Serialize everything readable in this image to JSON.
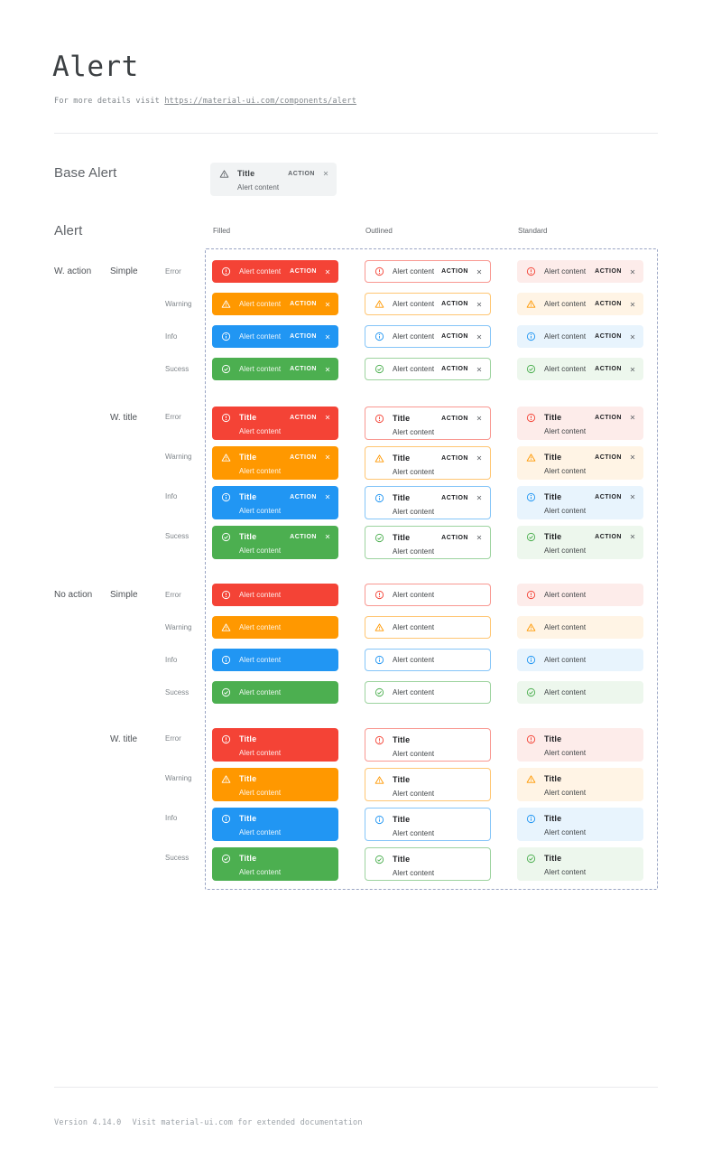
{
  "page": {
    "title": "Alert",
    "subtitle_prefix": "For more details visit ",
    "subtitle_link": "https://material-ui.com/components/alert"
  },
  "base_alert": {
    "section_label": "Base Alert",
    "title": "Title",
    "content": "Alert content",
    "action": "ACTION",
    "icon": "warning-icon"
  },
  "alert_section": {
    "label": "Alert",
    "variants": [
      "Filled",
      "Outlined",
      "Standard"
    ],
    "variant_keys": [
      "filled",
      "outlined",
      "standard"
    ],
    "groups": [
      {
        "label": "W. action",
        "with_action": true,
        "subgroups": [
          {
            "label": "Simple",
            "with_title": false
          },
          {
            "label": "W. title",
            "with_title": true
          }
        ]
      },
      {
        "label": "No action",
        "with_action": false,
        "subgroups": [
          {
            "label": "Simple",
            "with_title": false
          },
          {
            "label": "W. title",
            "with_title": true
          }
        ]
      }
    ],
    "severities": [
      {
        "label": "Error",
        "key": "error",
        "icon": "error-icon"
      },
      {
        "label": "Warning",
        "key": "warning",
        "icon": "warning-icon"
      },
      {
        "label": "Info",
        "key": "info",
        "icon": "info-icon"
      },
      {
        "label": "Sucess",
        "key": "success",
        "icon": "success-icon"
      }
    ],
    "alert": {
      "title": "Title",
      "content": "Alert content",
      "action": "ACTION"
    }
  },
  "footer": {
    "version": "Version 4.14.0",
    "note": "Visit material-ui.com for extended documentation"
  },
  "colors": {
    "error": {
      "main": "#f44336",
      "bg": "#fdecea",
      "border": "rgba(244,67,54,0.55)"
    },
    "warning": {
      "main": "#ff9800",
      "bg": "#fff4e5",
      "border": "rgba(255,152,0,0.55)"
    },
    "info": {
      "main": "#2196f3",
      "bg": "#e8f4fd",
      "border": "rgba(33,150,243,0.55)"
    },
    "success": {
      "main": "#4caf50",
      "bg": "#edf7ed",
      "border": "rgba(76,175,80,0.55)"
    },
    "base": {
      "bg": "#f1f3f4",
      "fg": "#5f6368"
    },
    "dashed_outline": "#9aa5c4"
  }
}
